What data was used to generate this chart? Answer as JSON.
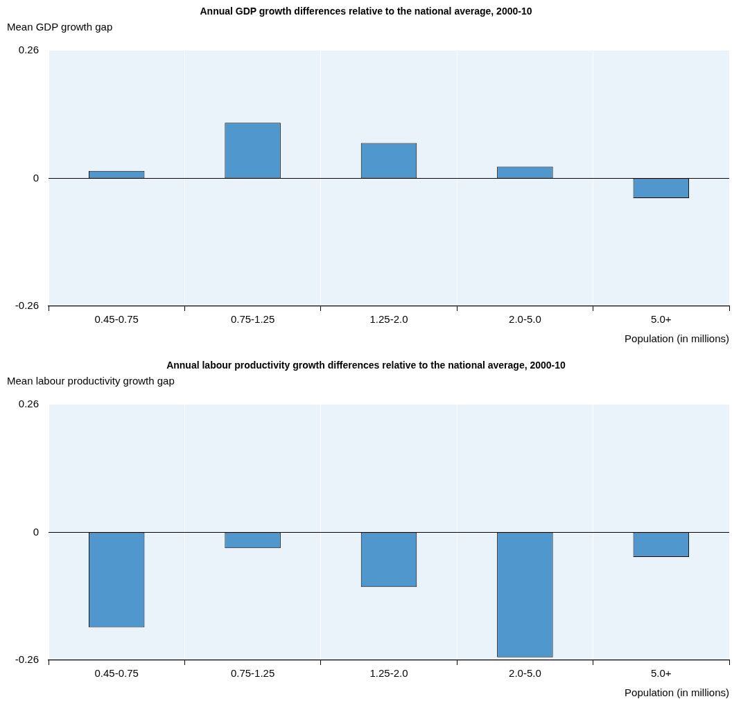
{
  "chart_data": [
    {
      "type": "bar",
      "title": "Annual GDP growth differences relative to the national average, 2000-10",
      "ylabel": "Mean GDP growth gap",
      "xlabel": "Population (in millions)",
      "categories": [
        "0.45-0.75",
        "0.75-1.25",
        "1.25-2.0",
        "2.0-5.0",
        "5.0+"
      ],
      "values": [
        0.015,
        0.113,
        0.072,
        0.024,
        -0.04
      ],
      "color": "#4f97cd",
      "ylim": [
        -0.26,
        0.26
      ],
      "yticks": [
        -0.26,
        0,
        0.26
      ],
      "grid": "x"
    },
    {
      "type": "bar",
      "title": "Annual labour productivity growth differences relative to the national average, 2000-10",
      "ylabel": "Mean labour productivity growth gap",
      "xlabel": "Population (in millions)",
      "categories": [
        "0.45-0.75",
        "0.75-1.25",
        "1.25-2.0",
        "2.0-5.0",
        "5.0+"
      ],
      "values": [
        -0.193,
        -0.032,
        -0.111,
        -0.254,
        -0.05
      ],
      "color": "#4f97cd",
      "ylim": [
        -0.26,
        0.26
      ],
      "yticks": [
        -0.26,
        0,
        0.26
      ],
      "grid": "x"
    }
  ]
}
